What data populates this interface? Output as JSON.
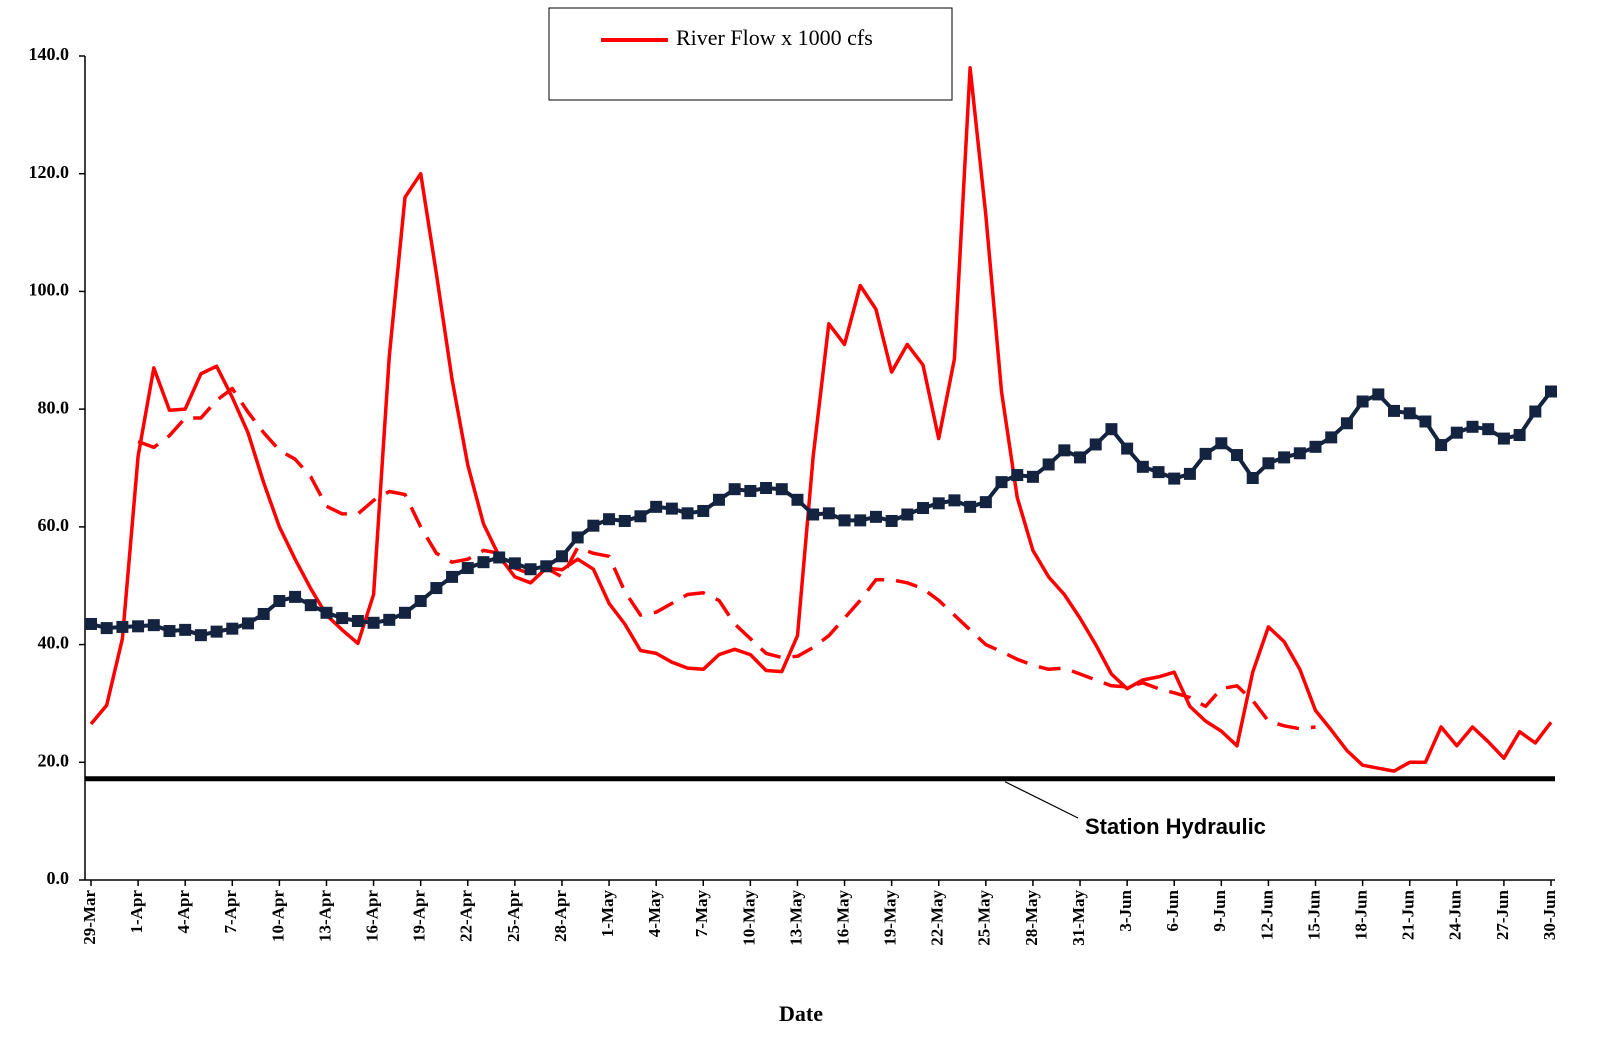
{
  "chart_data": {
    "type": "line",
    "x_label": "Date",
    "categories": [
      "29-Mar",
      null,
      null,
      "1-Apr",
      null,
      null,
      "4-Apr",
      null,
      null,
      "7-Apr",
      null,
      null,
      "10-Apr",
      null,
      null,
      "13-Apr",
      null,
      null,
      "16-Apr",
      null,
      null,
      "19-Apr",
      null,
      null,
      "22-Apr",
      null,
      null,
      "25-Apr",
      null,
      null,
      "28-Apr",
      null,
      null,
      "1-May",
      null,
      null,
      "4-May",
      null,
      null,
      "7-May",
      null,
      null,
      "10-May",
      null,
      null,
      "13-May",
      null,
      null,
      "16-May",
      null,
      null,
      "19-May",
      null,
      null,
      "22-May",
      null,
      null,
      "25-May",
      null,
      null,
      "28-May",
      null,
      null,
      "31-May",
      null,
      null,
      "3-Jun",
      null,
      null,
      "6-Jun",
      null,
      null,
      "9-Jun",
      null,
      null,
      "12-Jun",
      null,
      null,
      "15-Jun",
      null,
      null,
      "18-Jun",
      null,
      null,
      "21-Jun",
      null,
      null,
      "24-Jun",
      null,
      null,
      "27-Jun",
      null,
      null,
      "30-Jun"
    ],
    "series": [
      {
        "name": "River Flow x 1000 cfs",
        "color": "#ff0000",
        "line_style": "solid",
        "values": [
          26.5,
          29.7,
          41,
          72,
          87,
          79.8,
          80,
          86,
          87.3,
          82,
          76,
          67.5,
          60,
          54.5,
          49.5,
          45,
          42.5,
          40.2,
          48.5,
          89,
          116,
          120,
          103,
          85,
          70.5,
          60.5,
          55,
          51.5,
          50.5,
          53,
          52.7,
          54.5,
          52.8,
          47,
          43.5,
          39,
          38.5,
          37,
          36,
          35.8,
          38.3,
          39.2,
          38.3,
          35.6,
          35.4,
          41.5,
          72,
          94.5,
          91,
          101,
          97,
          86.3,
          91,
          87.5,
          75,
          88.5,
          138,
          113,
          83,
          65,
          56,
          51.5,
          48.5,
          44.5,
          40,
          35,
          32.5,
          34,
          34.5,
          35.3,
          29.5,
          27,
          25.3,
          22.8,
          35.3,
          43,
          40.5,
          35.8,
          28.8,
          25.5,
          22,
          19.5,
          19,
          18.5,
          20,
          20,
          26,
          22.8,
          26,
          23.5,
          20.7,
          25.2,
          23.3,
          26.8
        ]
      },
      {
        "color": "#ff0000",
        "line_style": "dashed",
        "values": [
          null,
          null,
          null,
          74.5,
          73.5,
          75.5,
          78.5,
          78.5,
          81.5,
          83.5,
          79.5,
          76,
          73,
          71.5,
          68.5,
          63.5,
          62.2,
          62.2,
          64.5,
          66,
          65.5,
          60,
          55.5,
          54,
          54.5,
          56,
          55.5,
          53,
          52,
          53,
          51.5,
          56.5,
          55.5,
          55,
          49,
          45,
          45.5,
          47,
          48.5,
          48.8,
          47.5,
          43.5,
          41,
          38.5,
          37.8,
          38,
          39.5,
          41.5,
          44.5,
          47.5,
          51,
          51,
          50.5,
          49.5,
          47.5,
          45,
          42.5,
          40,
          38.8,
          37.5,
          36.5,
          35.8,
          36,
          35,
          34,
          33,
          32.8,
          33.5,
          32.5,
          31.8,
          31,
          29.5,
          32.5,
          33,
          30.5,
          27,
          26.2,
          25.7,
          26,
          null,
          null,
          null,
          null,
          null,
          null,
          null,
          null,
          null,
          null,
          null,
          null,
          null,
          null,
          null
        ]
      },
      {
        "color": "#14233f",
        "line_style": "solid",
        "marker": "square",
        "values": [
          43.5,
          42.8,
          43,
          43.1,
          43.3,
          42.3,
          42.5,
          41.6,
          42.2,
          42.7,
          43.6,
          45.2,
          47.4,
          48.1,
          46.7,
          45.4,
          44.5,
          44,
          43.7,
          44.2,
          45.4,
          47.4,
          49.6,
          51.5,
          53,
          54,
          54.8,
          53.8,
          52.8,
          53.3,
          55,
          58.2,
          60.2,
          61.3,
          61,
          61.8,
          63.4,
          63.1,
          62.3,
          62.7,
          64.6,
          66.4,
          66.1,
          66.6,
          66.4,
          64.6,
          62.1,
          62.3,
          61.1,
          61.1,
          61.7,
          61,
          62.1,
          63.2,
          64,
          64.5,
          63.4,
          64.2,
          67.6,
          68.8,
          68.5,
          70.6,
          73,
          71.8,
          74,
          76.6,
          73.3,
          70.2,
          69.3,
          68.2,
          69,
          72.4,
          74.2,
          72.2,
          68.3,
          70.8,
          71.8,
          72.5,
          73.6,
          75.2,
          77.6,
          81.3,
          82.5,
          79.7,
          79.3,
          77.9,
          73.9,
          76,
          77,
          76.6,
          75,
          75.6,
          79.6,
          83
        ]
      }
    ],
    "reference_line": {
      "value": 17.2,
      "color": "#000000",
      "label": "Station Hydraulic"
    },
    "ylim": [
      0,
      140
    ],
    "yticks": [
      {
        "value": 0,
        "label": "0.0"
      },
      {
        "value": 20,
        "label": "20.0"
      },
      {
        "value": 40,
        "label": "40.0"
      },
      {
        "value": 60,
        "label": "60.0"
      },
      {
        "value": 80,
        "label": "80.0"
      },
      {
        "value": 100,
        "label": "100.0"
      },
      {
        "value": 120,
        "label": "120.0"
      },
      {
        "value": 140,
        "label": "140.0"
      }
    ],
    "grid": false,
    "legend": "top"
  }
}
